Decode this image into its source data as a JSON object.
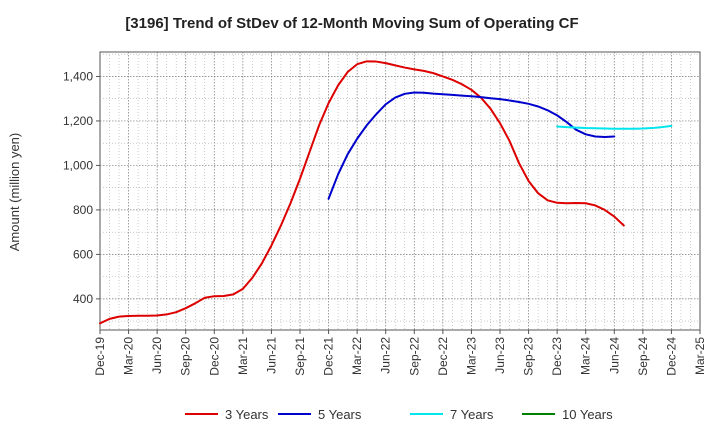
{
  "chart_data": {
    "type": "line",
    "title": "[3196]  Trend of StDev of 12-Month Moving Sum of Operating CF",
    "ylabel": "Amount (million yen)",
    "xlabel": "",
    "x_tick_labels": [
      "Dec-19",
      "Mar-20",
      "Jun-20",
      "Sep-20",
      "Dec-20",
      "Mar-21",
      "Jun-21",
      "Sep-21",
      "Dec-21",
      "Mar-22",
      "Jun-22",
      "Sep-22",
      "Dec-22",
      "Mar-23",
      "Jun-23",
      "Sep-23",
      "Dec-23",
      "Mar-24",
      "Jun-24",
      "Sep-24",
      "Dec-24",
      "Mar-25"
    ],
    "y_ticks": [
      400,
      600,
      800,
      1000,
      1200,
      1400
    ],
    "y_tick_labels": [
      "400",
      "600",
      "800",
      "1,000",
      "1,200",
      "1,400"
    ],
    "ylim": [
      260,
      1510
    ],
    "grid": true,
    "legend_position": "bottom",
    "series": [
      {
        "name": "3 Years",
        "color": "#dd0000",
        "start_index": 0,
        "values": [
          290,
          310,
          320,
          323,
          324,
          324,
          325,
          330,
          340,
          358,
          380,
          405,
          412,
          413,
          420,
          445,
          495,
          560,
          640,
          730,
          830,
          940,
          1060,
          1180,
          1280,
          1360,
          1420,
          1455,
          1468,
          1467,
          1460,
          1450,
          1440,
          1432,
          1425,
          1415,
          1400,
          1385,
          1365,
          1340,
          1305,
          1255,
          1190,
          1110,
          1010,
          930,
          875,
          843,
          832,
          830,
          831,
          830,
          820,
          800,
          770,
          730
        ]
      },
      {
        "name": "5 Years",
        "color": "#0000cc",
        "start_index": 24,
        "values": [
          850,
          960,
          1050,
          1120,
          1180,
          1230,
          1275,
          1305,
          1322,
          1328,
          1327,
          1323,
          1320,
          1317,
          1314,
          1311,
          1307,
          1302,
          1298,
          1292,
          1285,
          1277,
          1265,
          1248,
          1225,
          1195,
          1160,
          1140,
          1130,
          1128,
          1130
        ]
      },
      {
        "name": "7 Years",
        "color": "#00e5ee",
        "start_index": 48,
        "values": [
          1175,
          1172,
          1170,
          1168,
          1167,
          1166,
          1165,
          1165,
          1165,
          1166,
          1168,
          1172,
          1178
        ]
      },
      {
        "name": "10 Years",
        "color": "#008000",
        "start_index": 0,
        "values": []
      }
    ]
  }
}
